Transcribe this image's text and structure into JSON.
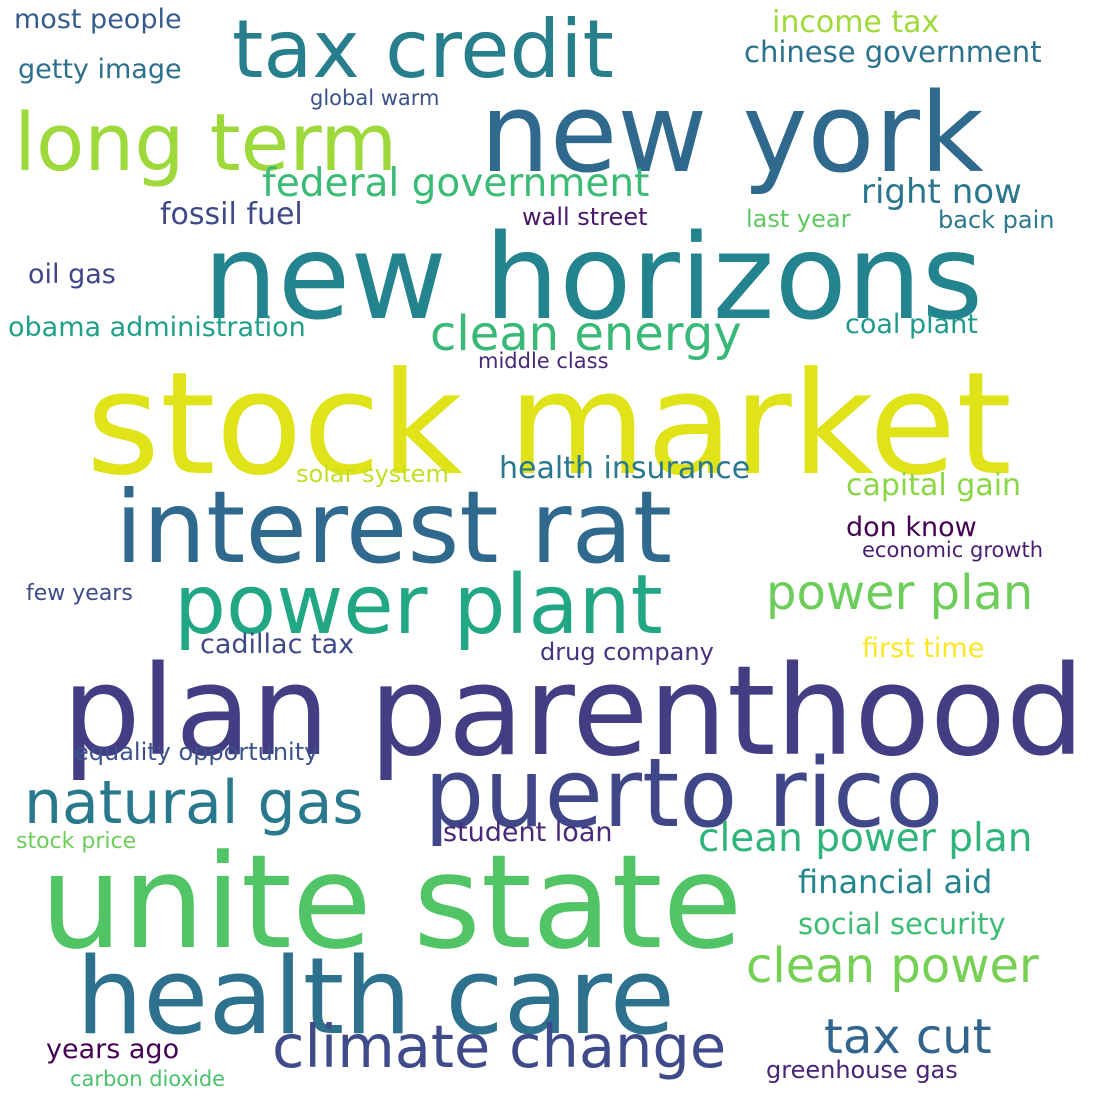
{
  "words": [
    {
      "text": "stock market",
      "color": "#dfe318"
    },
    {
      "text": "new horizons",
      "color": "#23838e"
    },
    {
      "text": "plan parenthood",
      "color": "#433d84"
    },
    {
      "text": "unite state",
      "color": "#51c466"
    },
    {
      "text": "interest rat",
      "color": "#30698e"
    },
    {
      "text": "new york",
      "color": "#30698e"
    },
    {
      "text": "health care",
      "color": "#2d718e"
    },
    {
      "text": "power plant",
      "color": "#22a785"
    },
    {
      "text": "puerto rico",
      "color": "#3f4788"
    },
    {
      "text": "tax credit",
      "color": "#277f8e"
    },
    {
      "text": "long term",
      "color": "#9dd93b"
    },
    {
      "text": "climate change",
      "color": "#3e4a89"
    },
    {
      "text": "natural gas",
      "color": "#29798e"
    },
    {
      "text": "clean energy",
      "color": "#39b977"
    },
    {
      "text": "power plan",
      "color": "#6ccd5a"
    },
    {
      "text": "clean power",
      "color": "#75d054"
    },
    {
      "text": "tax cut",
      "color": "#32658e"
    },
    {
      "text": "federal government",
      "color": "#3bbb75"
    },
    {
      "text": "clean power plan",
      "color": "#2fb47c"
    },
    {
      "text": "right now",
      "color": "#2a768e"
    },
    {
      "text": "health insurance",
      "color": "#2a788e"
    },
    {
      "text": "financial aid",
      "color": "#25848e"
    },
    {
      "text": "capital gain",
      "color": "#8bd646"
    },
    {
      "text": "fossil fuel",
      "color": "#3e4989"
    },
    {
      "text": "obama administration",
      "color": "#1fa088"
    },
    {
      "text": "income tax",
      "color": "#9fda3a"
    },
    {
      "text": "chinese government",
      "color": "#2c718e"
    },
    {
      "text": "social security",
      "color": "#3dbc74"
    },
    {
      "text": "cadillac tax",
      "color": "#3e4989"
    },
    {
      "text": "student loan",
      "color": "#482878"
    },
    {
      "text": "getty image",
      "color": "#2d708e"
    },
    {
      "text": "most people",
      "color": "#365c8d"
    },
    {
      "text": "coal plant",
      "color": "#1f998a"
    },
    {
      "text": "don know",
      "color": "#440154"
    },
    {
      "text": "first time",
      "color": "#fde725"
    },
    {
      "text": "years ago",
      "color": "#440154"
    },
    {
      "text": "oil gas",
      "color": "#404688"
    },
    {
      "text": "solar system",
      "color": "#c2df23"
    },
    {
      "text": "equality opportunity",
      "color": "#3b528b"
    },
    {
      "text": "drug company",
      "color": "#46327e"
    },
    {
      "text": "last year",
      "color": "#5ec962"
    },
    {
      "text": "wall street",
      "color": "#48186a"
    },
    {
      "text": "back pain",
      "color": "#2a788e"
    },
    {
      "text": "greenhouse gas",
      "color": "#482475"
    },
    {
      "text": "economic growth",
      "color": "#481f70"
    },
    {
      "text": "few years",
      "color": "#3e4a89"
    },
    {
      "text": "stock price",
      "color": "#6ccd5a"
    },
    {
      "text": "carbon dioxide",
      "color": "#4ac16d"
    },
    {
      "text": "middle class",
      "color": "#482878"
    },
    {
      "text": "global warm",
      "color": "#3b528b"
    }
  ]
}
